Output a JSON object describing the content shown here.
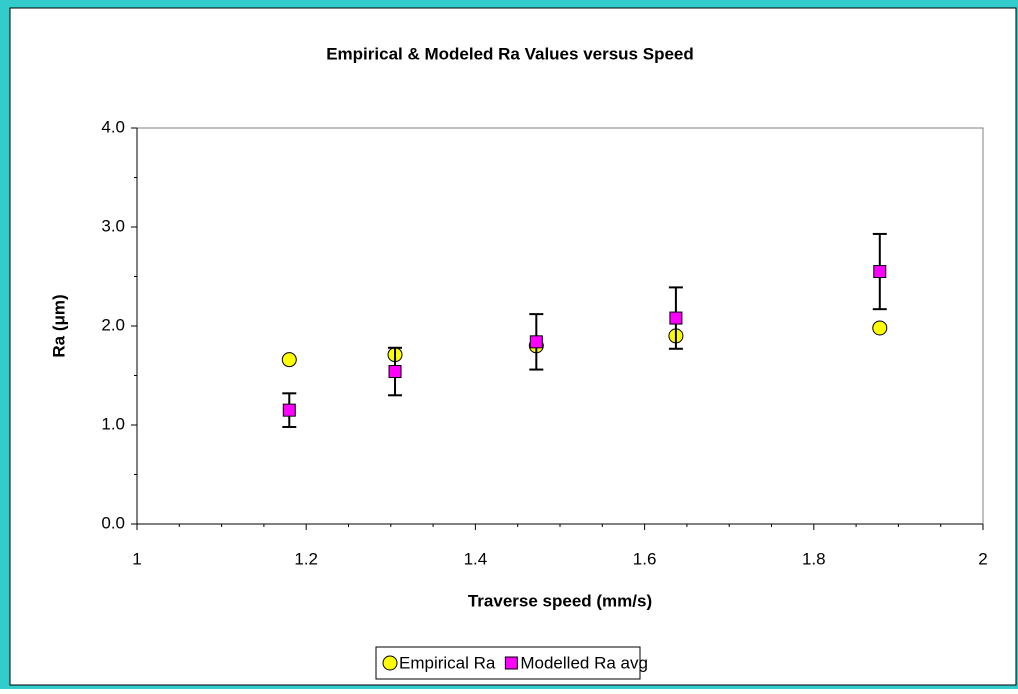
{
  "chart_data": {
    "type": "scatter",
    "title": "Empirical & Modeled Ra Values versus Speed",
    "xlabel": "Traverse speed (mm/s)",
    "ylabel": "Ra (μm)",
    "xlim": [
      1,
      2
    ],
    "xticks": [
      1,
      1.2,
      1.4,
      1.6,
      1.8,
      2
    ],
    "xminorticks": [
      1.05,
      1.1,
      1.15,
      1.25,
      1.3,
      1.35,
      1.45,
      1.5,
      1.55,
      1.65,
      1.7,
      1.75,
      1.85,
      1.9,
      1.95
    ],
    "ylim": [
      0,
      4
    ],
    "yticks": [
      {
        "value": 0,
        "label": "0.0"
      },
      {
        "value": 1,
        "label": "1.0"
      },
      {
        "value": 2,
        "label": "2.0"
      },
      {
        "value": 3,
        "label": "3.0"
      },
      {
        "value": 4,
        "label": "4.0"
      }
    ],
    "yminorticks": [
      0.5,
      1.5,
      2.5,
      3.5
    ],
    "grid": false,
    "legend": "bottom",
    "series": [
      {
        "name": "Empirical Ra",
        "color": "#ffff00",
        "marker": "circle",
        "x": [
          1.18,
          1.305,
          1.472,
          1.637,
          1.878
        ],
        "values": [
          1.66,
          1.71,
          1.8,
          1.9,
          1.98
        ]
      },
      {
        "name": "Modelled Ra avg",
        "color": "#ff00ff",
        "marker": "square",
        "x": [
          1.18,
          1.305,
          1.472,
          1.637,
          1.878
        ],
        "values": [
          1.15,
          1.54,
          1.84,
          2.08,
          2.55
        ],
        "errors": [
          0.17,
          0.24,
          0.28,
          0.31,
          0.38
        ]
      }
    ]
  }
}
